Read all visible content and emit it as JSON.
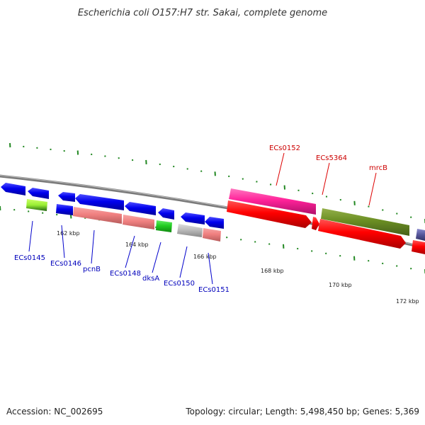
{
  "title": "Escherichia coli O157:H7 str. Sakai, complete genome",
  "footer": {
    "accession": "Accession: NC_002695",
    "summary": "Topology: circular; Length: 5,498,450 bp; Genes: 5,369"
  },
  "scale_labels": [
    "162 kbp",
    "164 kbp",
    "166 kbp",
    "168 kbp",
    "170 kbp",
    "172 kbp"
  ],
  "gene_labels": {
    "ecs0145": "ECs0145",
    "ecs0146": "ECs0146",
    "pcnb": "pcnB",
    "ecs0148": "ECs0148",
    "dksa": "dksA",
    "ecs0150": "ECs0150",
    "ecs0151": "ECs0151",
    "ecs0152": "ECs0152",
    "ecs5364": "ECs5364",
    "mrcb": "mrcB"
  },
  "colors": {
    "blue_gene": "#0000dd",
    "red_gene": "#ff0000",
    "pink_gene": "#ff3399",
    "olive_gene": "#6b8e23",
    "salmon_gene": "#f08080",
    "green_gene": "#22cc22",
    "grey_gene": "#bbbbbb",
    "backbone": "#777777",
    "tick": "#228822"
  }
}
